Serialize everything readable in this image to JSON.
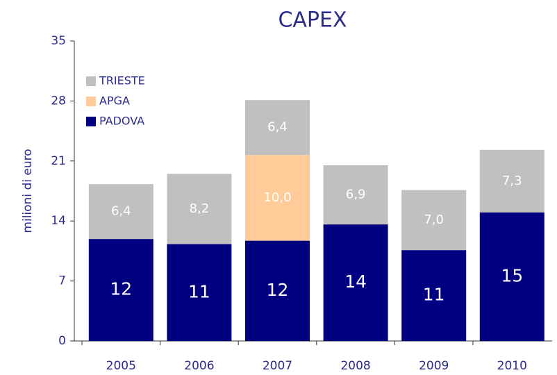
{
  "chart_data": {
    "type": "stacked_bar",
    "title": "CAPEX",
    "y_label": "milioni di euro",
    "categories": [
      "2005",
      "2006",
      "2007",
      "2008",
      "2009",
      "2010"
    ],
    "series": [
      {
        "name": "PADOVA",
        "color": "#000080",
        "values": [
          11.9,
          11.3,
          11.7,
          13.6,
          10.6,
          15.0
        ],
        "value_labels": [
          "12",
          "11",
          "12",
          "14",
          "11",
          "15"
        ]
      },
      {
        "name": "APGA",
        "color": "#ffcc99",
        "values": [
          null,
          null,
          10.0,
          null,
          null,
          null
        ],
        "value_labels": [
          null,
          null,
          "10,0",
          null,
          null,
          null
        ]
      },
      {
        "name": "TRIESTE",
        "color": "#c0c0c0",
        "values": [
          6.4,
          8.2,
          6.4,
          6.9,
          7.0,
          7.3
        ],
        "value_labels": [
          "6,4",
          "8,2",
          "6,4",
          "6,9",
          "7,0",
          "7,3"
        ]
      }
    ],
    "ylim": [
      0,
      35
    ],
    "yticks": [
      0,
      7,
      14,
      21,
      28,
      35
    ],
    "legend": "upper left"
  }
}
